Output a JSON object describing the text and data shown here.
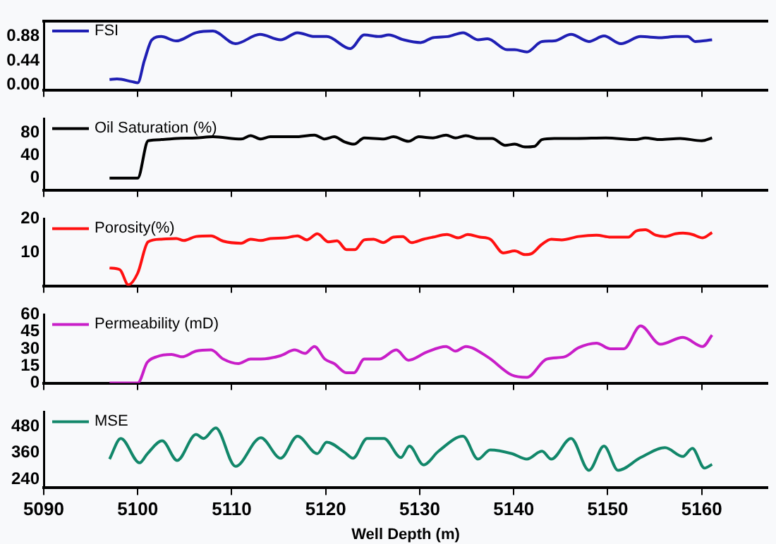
{
  "chart_data": [
    {
      "type": "line",
      "legend": "top left",
      "marker": "none",
      "line_style": "solid",
      "grid": false,
      "tick_labels": "y",
      "xlim": [
        5090,
        5167
      ],
      "xticks": [
        5090,
        5100,
        5110,
        5120,
        5130,
        5140,
        5150,
        5160
      ],
      "ylim": [
        -0.09,
        1.16
      ],
      "yticks": [
        {
          "value": 0,
          "label": "0.00"
        },
        {
          "value": 0.44,
          "label": "0.44"
        },
        {
          "value": 0.88,
          "label": "0.88"
        }
      ],
      "series": [
        {
          "name": "FSI",
          "color": "#1f1fb4",
          "x": [
            5097,
            5097.8,
            5099.4,
            5100,
            5100.7,
            5101.5,
            5102.5,
            5104.1,
            5106.2,
            5108,
            5110.4,
            5113,
            5115.2,
            5117,
            5118.8,
            5120.1,
            5122.6,
            5124.1,
            5125.7,
            5126.7,
            5128.3,
            5130.1,
            5131.4,
            5133,
            5134.6,
            5136.2,
            5137.2,
            5139.3,
            5140.1,
            5141.4,
            5143,
            5144.3,
            5146.1,
            5148,
            5149.6,
            5151.4,
            5153.5,
            5155.6,
            5157.2,
            5158.5,
            5159.3,
            5161.1
          ],
          "values": [
            0.1,
            0.11,
            0.06,
            0.04,
            0.44,
            0.82,
            0.88,
            0.8,
            0.95,
            0.98,
            0.75,
            0.92,
            0.82,
            0.95,
            0.88,
            0.88,
            0.66,
            0.91,
            0.88,
            0.91,
            0.82,
            0.77,
            0.86,
            0.88,
            0.95,
            0.82,
            0.84,
            0.64,
            0.64,
            0.6,
            0.79,
            0.8,
            0.92,
            0.79,
            0.89,
            0.75,
            0.88,
            0.86,
            0.88,
            0.88,
            0.79,
            0.82
          ]
        }
      ]
    },
    {
      "type": "line",
      "legend": "top left",
      "marker": "none",
      "line_style": "solid",
      "grid": false,
      "tick_labels": "y",
      "xlim": [
        5090,
        5167
      ],
      "xticks": [
        5090,
        5100,
        5110,
        5120,
        5130,
        5140,
        5150,
        5160
      ],
      "ylim": [
        -21,
        105
      ],
      "yticks": [
        0,
        40,
        80
      ],
      "series": [
        {
          "name": "Oil Saturation (%)",
          "color": "#000000",
          "x": [
            5097,
            5100,
            5101.1,
            5102.5,
            5104.1,
            5106.2,
            5108,
            5111,
            5112,
            5113.1,
            5114.1,
            5116.7,
            5118.8,
            5119.9,
            5120.9,
            5122,
            5123,
            5124.1,
            5126.2,
            5127.2,
            5128.8,
            5129.9,
            5131.4,
            5132.8,
            5133.8,
            5134.9,
            5136.2,
            5137.7,
            5139.1,
            5140.1,
            5141.2,
            5142.2,
            5143,
            5144.3,
            5146.7,
            5149.8,
            5153,
            5154,
            5155.6,
            5157.7,
            5160,
            5161.1
          ],
          "values": [
            0,
            0,
            66,
            68,
            70,
            71,
            73,
            69,
            75,
            69,
            73,
            73,
            76,
            69,
            73,
            64,
            60,
            71,
            69,
            73,
            65,
            73,
            71,
            76,
            71,
            75,
            70,
            70,
            58,
            60,
            55,
            56,
            68,
            70,
            70,
            71,
            68,
            71,
            68,
            70,
            66,
            71
          ]
        }
      ]
    },
    {
      "type": "line",
      "legend": "top left",
      "marker": "none",
      "line_style": "solid",
      "grid": false,
      "tick_labels": "y",
      "xlim": [
        5090,
        5167
      ],
      "xticks": [
        5090,
        5100,
        5110,
        5120,
        5130,
        5140,
        5150,
        5160
      ],
      "ylim": [
        0,
        20
      ],
      "yticks": [
        {
          "value": 0,
          "label": null
        },
        10,
        20
      ],
      "series": [
        {
          "name": "Porosity(%)",
          "color": "#ff1010",
          "x": [
            5097,
            5098.1,
            5099,
            5100,
            5101.1,
            5102.5,
            5104.1,
            5104.9,
            5106.2,
            5107.8,
            5109.1,
            5111,
            5112,
            5113.1,
            5114.1,
            5115.7,
            5117,
            5118,
            5119.1,
            5120.3,
            5121.2,
            5122.2,
            5123.1,
            5124.1,
            5125.1,
            5126.1,
            5127.2,
            5128.2,
            5129.1,
            5130.4,
            5131.4,
            5132.9,
            5134.1,
            5135.1,
            5136.4,
            5137.5,
            5138.9,
            5140.1,
            5141.2,
            5141.9,
            5143,
            5144,
            5145.1,
            5146.9,
            5148.8,
            5150.3,
            5152.2,
            5153,
            5154,
            5155.1,
            5156.1,
            5157.2,
            5158,
            5159,
            5160.1,
            5161.1
          ],
          "values": [
            5.3,
            4.8,
            0.3,
            3.8,
            13.1,
            13.9,
            14.1,
            13.5,
            14.7,
            14.9,
            13.3,
            12.7,
            13.9,
            13.5,
            14.1,
            14.3,
            14.9,
            13.7,
            15.5,
            13.1,
            13.4,
            10.8,
            10.8,
            13.7,
            13.9,
            12.9,
            14.5,
            14.7,
            12.9,
            13.9,
            14.5,
            15.3,
            14.3,
            15.3,
            14.5,
            13.9,
            9.8,
            10.4,
            9.3,
            9.6,
            12.4,
            13.9,
            13.7,
            14.7,
            15.1,
            14.5,
            14.5,
            16.3,
            16.7,
            15.1,
            14.7,
            15.5,
            15.7,
            15.3,
            14.3,
            15.9
          ]
        }
      ]
    },
    {
      "type": "line",
      "legend": "top left",
      "marker": "none",
      "line_style": "solid",
      "grid": false,
      "tick_labels": "y",
      "xlim": [
        5090,
        5167
      ],
      "xticks": [
        5090,
        5100,
        5110,
        5120,
        5130,
        5140,
        5150,
        5160
      ],
      "ylim": [
        0,
        60
      ],
      "yticks": [
        0,
        15,
        30,
        45,
        60
      ],
      "series": [
        {
          "name": "Permeability (mD)",
          "color": "#c81ec8",
          "x": [
            5097,
            5100,
            5101,
            5102,
            5103.6,
            5104.7,
            5106.2,
            5107.8,
            5109.1,
            5110.7,
            5112,
            5113.1,
            5115.2,
            5116.7,
            5117.8,
            5118.8,
            5119.9,
            5120.9,
            5122.2,
            5123,
            5124.1,
            5125.7,
            5127.5,
            5128.8,
            5130.7,
            5132.8,
            5133.8,
            5134.9,
            5137.2,
            5139.8,
            5141.4,
            5143.5,
            5145.4,
            5146.9,
            5148.8,
            5150.3,
            5151.7,
            5153.5,
            5155.6,
            5158,
            5160.1,
            5161.1
          ],
          "values": [
            0,
            0,
            18,
            23,
            25,
            23,
            28,
            29,
            21,
            17,
            21,
            21,
            24,
            29,
            26,
            32,
            21,
            17,
            9,
            9,
            21,
            21,
            29,
            20,
            27,
            32,
            28,
            32,
            23,
            7,
            5,
            21,
            23,
            31,
            35,
            30,
            30,
            50,
            34,
            40,
            32,
            42
          ]
        }
      ]
    },
    {
      "type": "line",
      "legend": "top left",
      "marker": "none",
      "line_style": "solid",
      "grid": false,
      "xlabel": "Well Depth (m)",
      "xlim": [
        5090,
        5167
      ],
      "xticks": [
        5090,
        5100,
        5110,
        5120,
        5130,
        5140,
        5150,
        5160
      ],
      "ylim": [
        200,
        546
      ],
      "yticks": [
        240,
        360,
        480
      ],
      "series": [
        {
          "name": "MSE",
          "color": "#12876a",
          "x": [
            5097,
            5098.2,
            5100.2,
            5101,
            5102.6,
            5104.2,
            5106.2,
            5107,
            5108.3,
            5110.4,
            5113.1,
            5115.2,
            5117,
            5119.1,
            5120.1,
            5122,
            5122.9,
            5124.4,
            5126.2,
            5128,
            5128.9,
            5130.4,
            5132,
            5134.6,
            5136.2,
            5137.5,
            5139.8,
            5141.4,
            5143,
            5144,
            5146.1,
            5148,
            5149.6,
            5151.1,
            5153.5,
            5156.1,
            5158,
            5159,
            5160.3,
            5161.1
          ],
          "values": [
            331,
            425,
            314,
            354,
            414,
            325,
            443,
            425,
            473,
            298,
            428,
            335,
            435,
            356,
            408,
            362,
            335,
            425,
            425,
            338,
            390,
            305,
            367,
            435,
            331,
            373,
            356,
            331,
            367,
            331,
            425,
            280,
            390,
            280,
            338,
            383,
            343,
            380,
            290,
            307
          ]
        }
      ]
    }
  ]
}
